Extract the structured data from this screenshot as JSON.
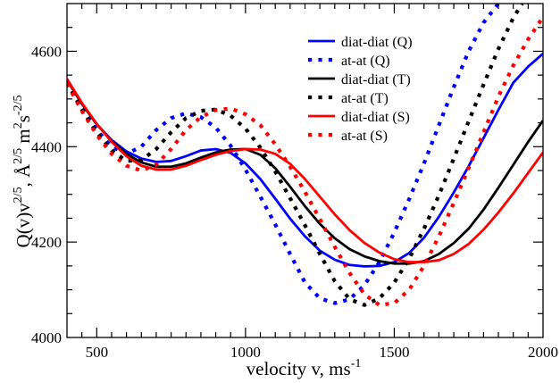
{
  "chart_data": {
    "type": "line",
    "title": "",
    "xlabel": {
      "main": "velocity v, ms",
      "sup": "-1"
    },
    "ylabel": {
      "parts": [
        {
          "t": "Q(v)v",
          "sup": false
        },
        {
          "t": "2/5",
          "sup": true
        },
        {
          "t": ", Å",
          "sup": false
        },
        {
          "t": "2/5",
          "sup": true
        },
        {
          "t": " m",
          "sup": false
        },
        {
          "t": "2",
          "sup": true
        },
        {
          "t": "s",
          "sup": false
        },
        {
          "t": "-2/5",
          "sup": true
        }
      ]
    },
    "xlim": [
      400,
      2000
    ],
    "ylim": [
      4000,
      4700
    ],
    "xticks": [
      500,
      1000,
      1500,
      2000
    ],
    "xtick_labels": [
      "500",
      "1000",
      "1500",
      "2000"
    ],
    "yticks": [
      4000,
      4200,
      4400,
      4600
    ],
    "ytick_labels": [
      "4000",
      "4200",
      "4400",
      "4600"
    ],
    "grid": false,
    "legend_position": "top-right",
    "series": [
      {
        "name": "diat-diat (Q)",
        "color": "#0000ff",
        "style": "solid",
        "x": [
          400,
          450,
          500,
          550,
          600,
          650,
          700,
          750,
          800,
          850,
          900,
          950,
          1000,
          1050,
          1100,
          1150,
          1200,
          1250,
          1300,
          1350,
          1400,
          1450,
          1500,
          1550,
          1600,
          1650,
          1700,
          1750,
          1800,
          1850,
          1900,
          1950,
          2000
        ],
        "y": [
          4540,
          4490,
          4447,
          4414,
          4390,
          4375,
          4368,
          4370,
          4380,
          4392,
          4395,
          4387,
          4365,
          4332,
          4291,
          4249,
          4212,
          4182,
          4163,
          4152,
          4149,
          4150,
          4158,
          4177,
          4209,
          4253,
          4304,
          4359,
          4418,
          4477,
          4534,
          4568,
          4595
        ]
      },
      {
        "name": "at-at (Q)",
        "color": "#0000ff",
        "style": "dotted",
        "x": [
          400,
          450,
          500,
          550,
          600,
          650,
          700,
          750,
          800,
          850,
          900,
          950,
          1000,
          1050,
          1100,
          1150,
          1200,
          1250,
          1300,
          1350,
          1400,
          1450,
          1500,
          1550,
          1600,
          1650,
          1700,
          1750,
          1800,
          1850
        ],
        "y": [
          4535,
          4480,
          4435,
          4400,
          4385,
          4400,
          4435,
          4460,
          4470,
          4462,
          4440,
          4402,
          4352,
          4295,
          4237,
          4175,
          4115,
          4082,
          4072,
          4080,
          4110,
          4158,
          4220,
          4290,
          4365,
          4445,
          4525,
          4600,
          4660,
          4700
        ]
      },
      {
        "name": "diat-diat (T)",
        "color": "#000000",
        "style": "solid",
        "x": [
          400,
          450,
          500,
          550,
          600,
          650,
          700,
          750,
          800,
          850,
          900,
          950,
          1000,
          1050,
          1100,
          1150,
          1200,
          1250,
          1300,
          1350,
          1400,
          1450,
          1500,
          1550,
          1600,
          1650,
          1700,
          1750,
          1800,
          1850,
          1900,
          1950,
          2000
        ],
        "y": [
          4540,
          4490,
          4447,
          4412,
          4385,
          4367,
          4358,
          4358,
          4365,
          4377,
          4388,
          4394,
          4395,
          4383,
          4355,
          4316,
          4275,
          4238,
          4208,
          4185,
          4170,
          4160,
          4155,
          4155,
          4160,
          4175,
          4198,
          4228,
          4268,
          4314,
          4362,
          4410,
          4455
        ]
      },
      {
        "name": "at-at (T)",
        "color": "#000000",
        "style": "dotted",
        "x": [
          400,
          450,
          500,
          550,
          600,
          650,
          700,
          750,
          800,
          850,
          900,
          950,
          1000,
          1050,
          1100,
          1150,
          1200,
          1250,
          1300,
          1350,
          1400,
          1450,
          1500,
          1550,
          1600,
          1650,
          1700,
          1750,
          1800,
          1850,
          1900,
          1930
        ],
        "y": [
          4535,
          4478,
          4430,
          4392,
          4370,
          4372,
          4395,
          4430,
          4460,
          4475,
          4478,
          4465,
          4438,
          4398,
          4348,
          4292,
          4235,
          4175,
          4118,
          4080,
          4068,
          4082,
          4115,
          4165,
          4228,
          4298,
          4375,
          4453,
          4530,
          4605,
          4670,
          4700
        ]
      },
      {
        "name": "diat-diat (S)",
        "color": "#ff0000",
        "style": "solid",
        "x": [
          400,
          450,
          500,
          550,
          600,
          650,
          700,
          750,
          800,
          850,
          900,
          950,
          1000,
          1050,
          1100,
          1150,
          1200,
          1250,
          1300,
          1350,
          1400,
          1450,
          1500,
          1550,
          1600,
          1650,
          1700,
          1750,
          1800,
          1850,
          1900,
          1950,
          2000
        ],
        "y": [
          4542,
          4492,
          4448,
          4410,
          4380,
          4360,
          4352,
          4352,
          4360,
          4372,
          4383,
          4391,
          4395,
          4394,
          4385,
          4364,
          4332,
          4295,
          4258,
          4225,
          4198,
          4178,
          4164,
          4158,
          4158,
          4162,
          4175,
          4196,
          4226,
          4262,
          4302,
          4345,
          4388
        ]
      },
      {
        "name": "at-at (S)",
        "color": "#ff0000",
        "style": "dotted",
        "x": [
          400,
          450,
          500,
          550,
          600,
          650,
          700,
          750,
          800,
          850,
          900,
          950,
          1000,
          1050,
          1100,
          1150,
          1200,
          1250,
          1300,
          1350,
          1400,
          1450,
          1500,
          1550,
          1600,
          1650,
          1700,
          1750,
          1800,
          1850,
          1900,
          1950,
          2000
        ],
        "y": [
          4532,
          4475,
          4425,
          4385,
          4360,
          4350,
          4362,
          4395,
          4435,
          4462,
          4477,
          4480,
          4468,
          4445,
          4405,
          4358,
          4305,
          4248,
          4190,
          4135,
          4090,
          4068,
          4072,
          4100,
          4150,
          4212,
          4282,
          4355,
          4430,
          4505,
          4570,
          4625,
          4672
        ]
      }
    ]
  }
}
